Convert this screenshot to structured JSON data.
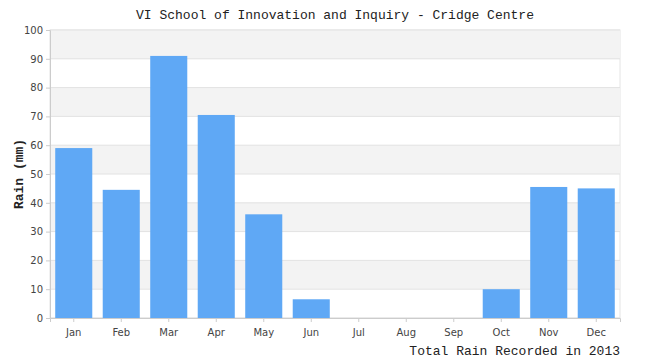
{
  "chart_data": {
    "type": "bar",
    "title": "VI School of Innovation and Inquiry - Cridge Centre",
    "ylabel": "Rain (mm)",
    "xlabel": "Total Rain Recorded in 2013",
    "categories": [
      "Jan",
      "Feb",
      "Mar",
      "Apr",
      "May",
      "Jun",
      "Jul",
      "Aug",
      "Sep",
      "Oct",
      "Nov",
      "Dec"
    ],
    "values": [
      59,
      44.5,
      91,
      70.5,
      36,
      6.5,
      0,
      0,
      0,
      10,
      45.5,
      45
    ],
    "color": "#5fa8f5",
    "ylim": [
      0,
      100
    ],
    "yticks": [
      0,
      10,
      20,
      30,
      40,
      50,
      60,
      70,
      80,
      90,
      100
    ],
    "grid": true
  }
}
